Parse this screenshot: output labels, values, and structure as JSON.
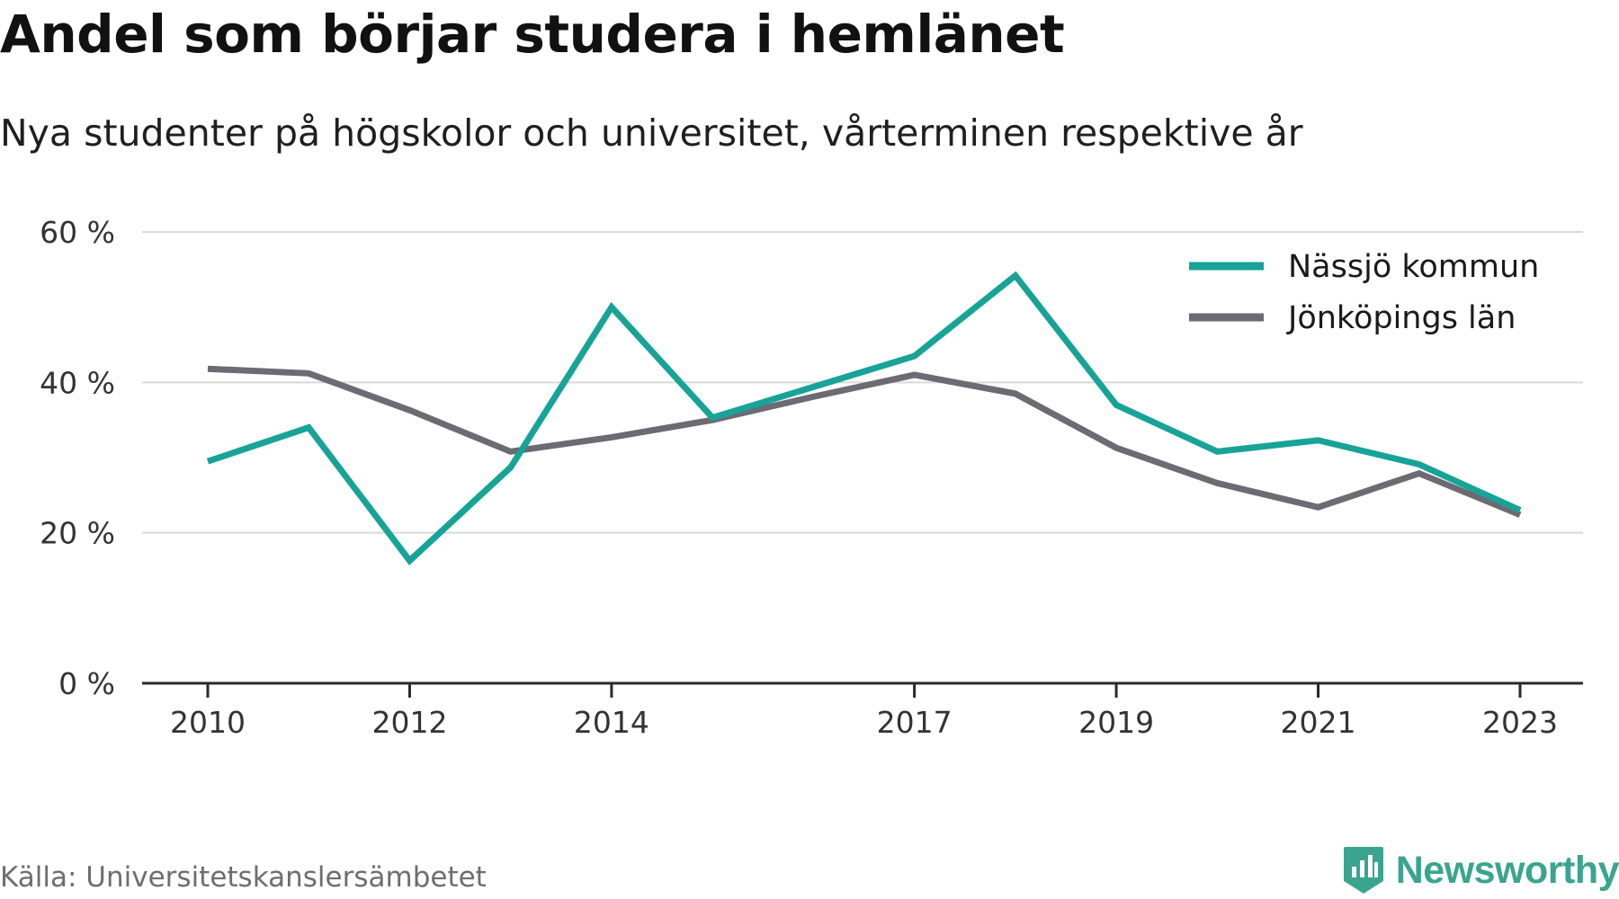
{
  "title": "Andel som börjar studera i hemlänet",
  "subtitle": "Nya studenter på högskolor och universitet, vårterminen respektive år",
  "source": "Källa: Universitetskanslersämbetet",
  "brand": "Newsworthy",
  "colors": {
    "nassjo": "#17a398",
    "jonkoping": "#6d6a73",
    "grid": "#d9d9d9",
    "axis": "#2a2a2a",
    "brand": "#3aa58f"
  },
  "chart_data": {
    "type": "line",
    "title": "Andel som börjar studera i hemlänet",
    "subtitle": "Nya studenter på högskolor och universitet, vårterminen respektive år",
    "xlabel": "",
    "ylabel": "",
    "x": [
      2010,
      2011,
      2012,
      2013,
      2014,
      2015,
      2016,
      2017,
      2018,
      2019,
      2020,
      2021,
      2022,
      2023
    ],
    "x_ticks": [
      "2010",
      "2012",
      "2014",
      "2017",
      "2019",
      "2021",
      "2023"
    ],
    "y_ticks": [
      "0 %",
      "20 %",
      "40 %",
      "60 %"
    ],
    "y_tick_values": [
      0,
      20,
      40,
      60
    ],
    "ylim": [
      0,
      60
    ],
    "grid": true,
    "legend_position": "top-right",
    "series": [
      {
        "name": "Nässjö kommun",
        "color": "#17a398",
        "values": [
          29.5,
          34.0,
          16.3,
          28.7,
          50.0,
          35.3,
          39.4,
          43.5,
          54.2,
          37.0,
          30.8,
          32.3,
          29.1,
          23.0
        ]
      },
      {
        "name": "Jönköpings län",
        "color": "#6d6a73",
        "values": [
          41.8,
          41.2,
          36.3,
          30.8,
          32.7,
          35.0,
          38.1,
          41.0,
          38.5,
          31.3,
          26.6,
          23.4,
          27.9,
          22.4
        ]
      }
    ]
  }
}
